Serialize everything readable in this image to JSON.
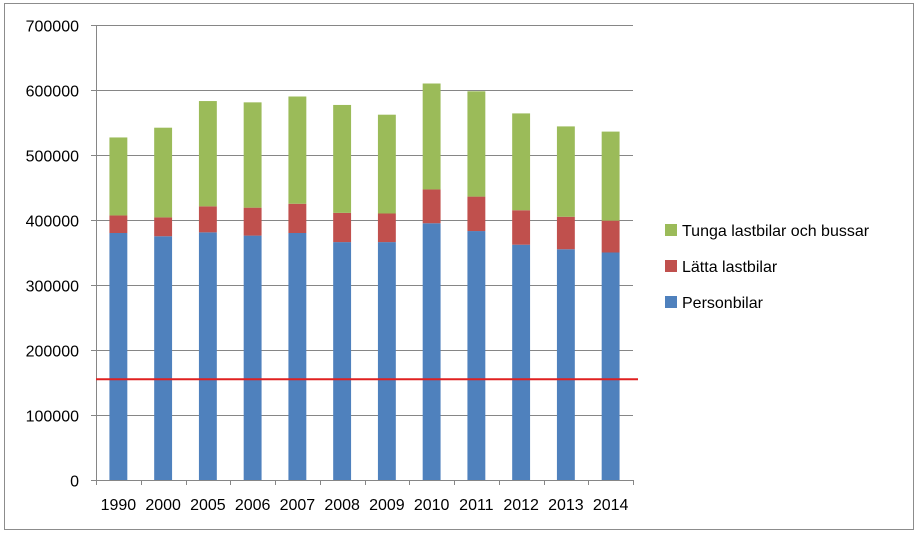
{
  "chart_data": {
    "type": "bar",
    "stacked": true,
    "categories": [
      "1990",
      "2000",
      "2005",
      "2006",
      "2007",
      "2008",
      "2009",
      "2010",
      "2011",
      "2012",
      "2013",
      "2014"
    ],
    "series": [
      {
        "name": "Personbilar",
        "color": "#4f81bd",
        "values": [
          380000,
          375000,
          381000,
          376000,
          380000,
          366000,
          366000,
          395000,
          383000,
          362000,
          355000,
          350000
        ]
      },
      {
        "name": "Lätta lastbilar",
        "color": "#c0504d",
        "values": [
          27000,
          29000,
          40000,
          43000,
          45000,
          45000,
          44000,
          52000,
          53000,
          53000,
          50000,
          49000
        ]
      },
      {
        "name": "Tunga lastbilar och bussar",
        "color": "#9bbb59",
        "values": [
          120000,
          138000,
          162000,
          162000,
          165000,
          166000,
          152000,
          163000,
          162000,
          149000,
          139000,
          137000
        ]
      }
    ],
    "reference_line": {
      "value": 155000,
      "color": "#e02020"
    },
    "ylim": [
      0,
      700000
    ],
    "yticks": [
      "0",
      "100000",
      "200000",
      "300000",
      "400000",
      "500000",
      "600000",
      "700000"
    ],
    "grid": true,
    "legend_position": "right",
    "title": "",
    "xlabel": "",
    "ylabel": ""
  }
}
